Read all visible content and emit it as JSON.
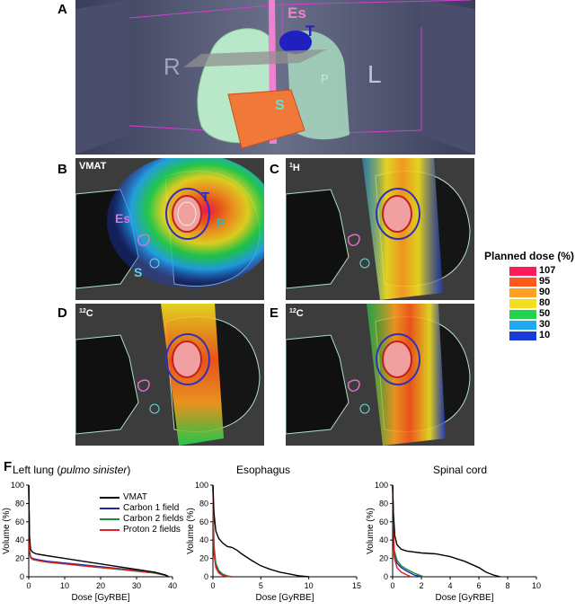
{
  "panels": {
    "A": {
      "letter": "A",
      "labels": {
        "es": "Es",
        "t": "T",
        "r": "R",
        "l": "L",
        "p": "P",
        "s": "S"
      }
    },
    "B": {
      "letter": "B",
      "title": "VMAT",
      "labels": {
        "es": "Es",
        "t": "T",
        "p": "P",
        "s": "S"
      }
    },
    "C": {
      "letter": "C",
      "title_sup": "1",
      "title": "H"
    },
    "D": {
      "letter": "D",
      "title_sup": "12",
      "title": "C"
    },
    "E": {
      "letter": "E",
      "title_sup": "12",
      "title": "C"
    },
    "F": {
      "letter": "F"
    }
  },
  "dose_legend": {
    "title": "Planned  dose (%)",
    "levels": [
      {
        "value": "107",
        "color": "#ff1a5a"
      },
      {
        "value": "95",
        "color": "#ff5a1a"
      },
      {
        "value": "90",
        "color": "#ffa020"
      },
      {
        "value": "80",
        "color": "#f2e020"
      },
      {
        "value": "50",
        "color": "#20d44c"
      },
      {
        "value": "30",
        "color": "#20a8f0"
      },
      {
        "value": "10",
        "color": "#1a3cd8"
      }
    ]
  },
  "line_legend": [
    {
      "name": "VMAT",
      "color": "#000000"
    },
    {
      "name": "Carbon 1 field",
      "color": "#2222aa"
    },
    {
      "name": "Carbon 2 fields",
      "color": "#1a8c3a"
    },
    {
      "name": "Proton 2 fields",
      "color": "#dd2222"
    }
  ],
  "chart_data": [
    {
      "type": "line",
      "title_prefix": "Left lung (",
      "title_italic": "pulmo sinister",
      "title_suffix": ")",
      "xlabel": "Dose [GyRBE]",
      "ylabel": "Volume (%)",
      "xlim": [
        0,
        40
      ],
      "ylim": [
        0,
        100
      ],
      "xticks": [
        0,
        10,
        20,
        30,
        40
      ],
      "yticks": [
        0,
        20,
        40,
        60,
        80,
        100
      ],
      "series": [
        {
          "name": "VMAT",
          "color": "#000000",
          "x": [
            0,
            0.2,
            0.5,
            1,
            2,
            5,
            10,
            15,
            20,
            25,
            30,
            35,
            38,
            39
          ],
          "y": [
            100,
            45,
            30,
            27,
            25,
            23,
            20,
            17,
            14,
            11,
            8,
            5,
            2,
            0
          ]
        },
        {
          "name": "Carbon 1 field",
          "color": "#2222aa",
          "x": [
            0,
            0.2,
            0.5,
            1,
            2,
            5,
            10,
            15,
            20,
            25,
            30,
            35,
            38,
            39
          ],
          "y": [
            100,
            30,
            22,
            20,
            19,
            17,
            15,
            13,
            11,
            9,
            7,
            5,
            2,
            0
          ]
        },
        {
          "name": "Carbon 2 fields",
          "color": "#1a8c3a",
          "x": [
            0,
            0.2,
            0.5,
            1,
            2,
            5,
            10,
            15,
            20,
            25,
            30,
            35,
            38,
            39
          ],
          "y": [
            100,
            28,
            21,
            19,
            18,
            16,
            14,
            12,
            10,
            8,
            6,
            4,
            1.5,
            0
          ]
        },
        {
          "name": "Proton 2 fields",
          "color": "#dd2222",
          "x": [
            0,
            0.2,
            0.5,
            1,
            2,
            5,
            10,
            15,
            20,
            25,
            30,
            35,
            38,
            39
          ],
          "y": [
            100,
            28,
            21,
            19,
            18,
            16,
            14,
            12,
            10,
            8.5,
            6.5,
            4.5,
            2,
            0
          ]
        }
      ]
    },
    {
      "type": "line",
      "title_prefix": "Esophagus",
      "title_italic": "",
      "title_suffix": "",
      "xlabel": "Dose [GyRBE]",
      "ylabel": "Volume (%)",
      "xlim": [
        0,
        15
      ],
      "ylim": [
        0,
        100
      ],
      "xticks": [
        0,
        5,
        10,
        15
      ],
      "yticks": [
        0,
        20,
        40,
        60,
        80,
        100
      ],
      "series": [
        {
          "name": "VMAT",
          "color": "#000000",
          "x": [
            0,
            0.1,
            0.3,
            0.6,
            1,
            1.5,
            2,
            2.5,
            3,
            4,
            5,
            6,
            7,
            8,
            9,
            10
          ],
          "y": [
            100,
            70,
            50,
            42,
            37,
            33,
            32,
            29,
            25,
            18,
            12,
            8,
            5,
            3,
            1,
            0
          ]
        },
        {
          "name": "Carbon 1 field",
          "color": "#2222aa",
          "x": [
            0,
            0.1,
            0.3,
            0.6,
            1,
            1.5,
            2
          ],
          "y": [
            100,
            30,
            12,
            5,
            2,
            0.5,
            0
          ]
        },
        {
          "name": "Carbon 2 fields",
          "color": "#1a8c3a",
          "x": [
            0,
            0.1,
            0.3,
            0.6,
            1,
            1.5,
            2
          ],
          "y": [
            100,
            35,
            15,
            7,
            3,
            1,
            0
          ]
        },
        {
          "name": "Proton 2 fields",
          "color": "#dd2222",
          "x": [
            0,
            0.1,
            0.3,
            0.6,
            1,
            1.5,
            2
          ],
          "y": [
            100,
            25,
            10,
            4,
            1.5,
            0.5,
            0
          ]
        }
      ]
    },
    {
      "type": "line",
      "title_prefix": "Spinal cord",
      "title_italic": "",
      "title_suffix": "",
      "xlabel": "Dose [GyRBE]",
      "ylabel": "Volume (%)",
      "xlim": [
        0,
        10
      ],
      "ylim": [
        0,
        100
      ],
      "xticks": [
        0,
        2,
        4,
        6,
        8,
        10
      ],
      "yticks": [
        0,
        20,
        40,
        60,
        80,
        100
      ],
      "series": [
        {
          "name": "VMAT",
          "color": "#000000",
          "x": [
            0,
            0.05,
            0.15,
            0.3,
            0.6,
            1,
            2,
            3,
            4,
            5,
            6,
            6.5,
            7,
            7.5
          ],
          "y": [
            100,
            70,
            45,
            35,
            30,
            28,
            26,
            25,
            22,
            17,
            10,
            5,
            2,
            0
          ]
        },
        {
          "name": "Carbon 1 field",
          "color": "#2222aa",
          "x": [
            0,
            0.1,
            0.3,
            0.6,
            1,
            1.5,
            2
          ],
          "y": [
            100,
            28,
            15,
            10,
            6,
            2,
            0
          ]
        },
        {
          "name": "Carbon 2 fields",
          "color": "#1a8c3a",
          "x": [
            0,
            0.1,
            0.3,
            0.6,
            1,
            1.5,
            2,
            2.2
          ],
          "y": [
            100,
            30,
            18,
            12,
            8,
            4,
            1,
            0
          ]
        },
        {
          "name": "Proton 2 fields",
          "color": "#dd2222",
          "x": [
            0,
            0.1,
            0.3,
            0.6,
            1,
            1.3
          ],
          "y": [
            100,
            22,
            10,
            5,
            2,
            0
          ]
        }
      ]
    }
  ]
}
